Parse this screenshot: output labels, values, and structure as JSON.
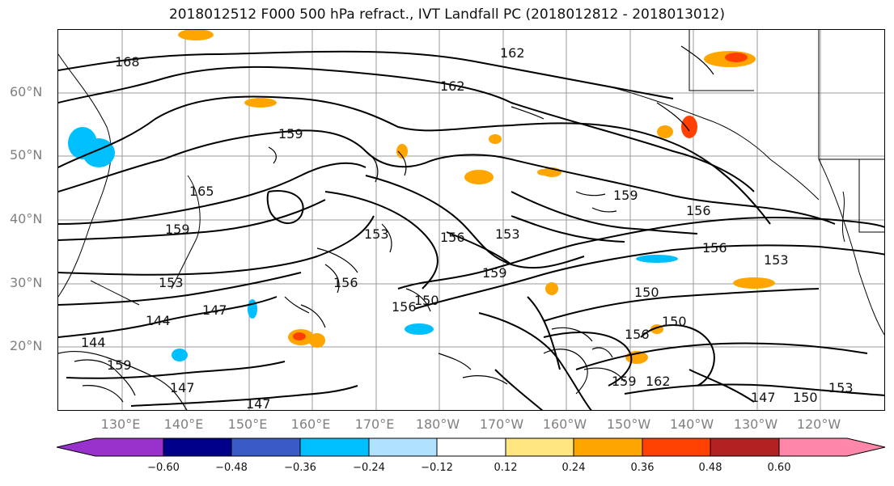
{
  "title": "2018012512 F000 500 hPa refract., IVT Landfall PC (2018012812 - 2018013012)",
  "lat_labels": [
    "60°N",
    "50°N",
    "40°N",
    "30°N",
    "20°N"
  ],
  "lon_labels": [
    "130°E",
    "140°E",
    "150°E",
    "160°E",
    "170°E",
    "180°W",
    "170°W",
    "160°W",
    "150°W",
    "140°W",
    "130°W",
    "120°W"
  ],
  "colorbar": {
    "tick_labels": [
      "−0.60",
      "−0.48",
      "−0.36",
      "−0.24",
      "−0.12",
      "0.12",
      "0.24",
      "0.36",
      "0.48",
      "0.60"
    ],
    "colors": [
      "#9932cc",
      "#00008b",
      "#3a5bc7",
      "#00bfff",
      "#b0e2ff",
      "#ffffff",
      "#ffe680",
      "#ffa500",
      "#ff4000",
      "#b22222",
      "#ff88aa"
    ]
  },
  "contour_labels": [
    "168",
    "162",
    "162",
    "159",
    "159",
    "165",
    "159",
    "153",
    "156",
    "153",
    "159",
    "156",
    "156",
    "153",
    "150",
    "150",
    "153",
    "147",
    "144",
    "144",
    "147",
    "147",
    "150",
    "156",
    "159",
    "162",
    "147",
    "150",
    "153",
    "156",
    "159",
    "156"
  ]
}
